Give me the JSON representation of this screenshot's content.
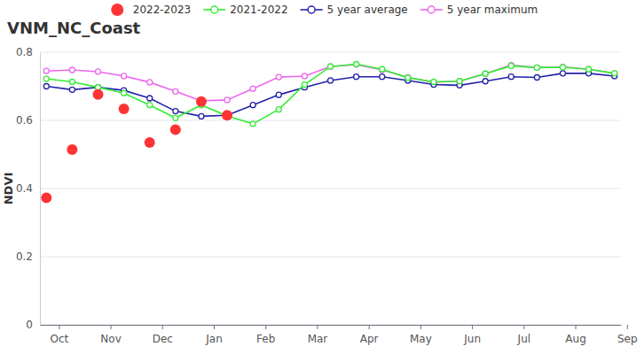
{
  "chart_data": {
    "type": "line",
    "title": "VNM_NC_Coast",
    "y_label": "NDVI",
    "categories": [
      "Oct",
      null,
      "Nov",
      null,
      "Dec",
      null,
      "Jan",
      null,
      "Feb",
      null,
      "Mar",
      null,
      "Apr",
      null,
      "May",
      null,
      "Jun",
      null,
      "Jul",
      null,
      "Aug",
      null,
      "Sep"
    ],
    "ylim": [
      0,
      0.8
    ],
    "yticks": [
      0,
      0.2,
      0.4,
      0.6,
      0.8
    ],
    "grid": true,
    "legend": "top",
    "series": [
      {
        "name": "2022-2023",
        "color": "#ff3333",
        "type": "scatter",
        "marker": "circle",
        "line_style": "none",
        "values": [
          0.373,
          0.514,
          0.676,
          0.634,
          0.535,
          0.573,
          0.655,
          0.615,
          null,
          null,
          null,
          null,
          null,
          null,
          null,
          null,
          null,
          null,
          null,
          null,
          null,
          null,
          null
        ]
      },
      {
        "name": "2021-2022",
        "color": "#33ee33",
        "type": "line",
        "marker": "open_circle",
        "line_style": "solid",
        "values": [
          0.722,
          0.713,
          0.697,
          0.68,
          0.645,
          0.607,
          0.645,
          0.613,
          0.59,
          0.632,
          0.705,
          0.758,
          0.765,
          0.75,
          0.725,
          0.713,
          0.715,
          0.737,
          0.76,
          0.755,
          0.756,
          0.75,
          0.738
        ]
      },
      {
        "name": "5 year average",
        "color": "#2222aa",
        "type": "line",
        "marker": "open_circle",
        "line_style": "solid",
        "values": [
          0.7,
          0.69,
          0.697,
          0.688,
          0.665,
          0.627,
          0.612,
          0.615,
          0.645,
          0.675,
          0.697,
          0.717,
          0.728,
          0.728,
          0.717,
          0.705,
          0.703,
          0.715,
          0.728,
          0.726,
          0.738,
          0.738,
          0.73
        ]
      },
      {
        "name": "5 year maximum",
        "color": "#ee66ee",
        "type": "line",
        "marker": "open_circle",
        "line_style": "solid",
        "values": [
          0.745,
          0.748,
          0.743,
          0.73,
          0.712,
          0.685,
          0.657,
          0.66,
          0.693,
          0.727,
          0.73,
          0.758,
          0.764,
          0.748,
          0.726,
          0.712,
          0.715,
          0.737,
          0.762,
          0.755,
          0.757,
          0.75,
          0.738
        ]
      }
    ]
  }
}
